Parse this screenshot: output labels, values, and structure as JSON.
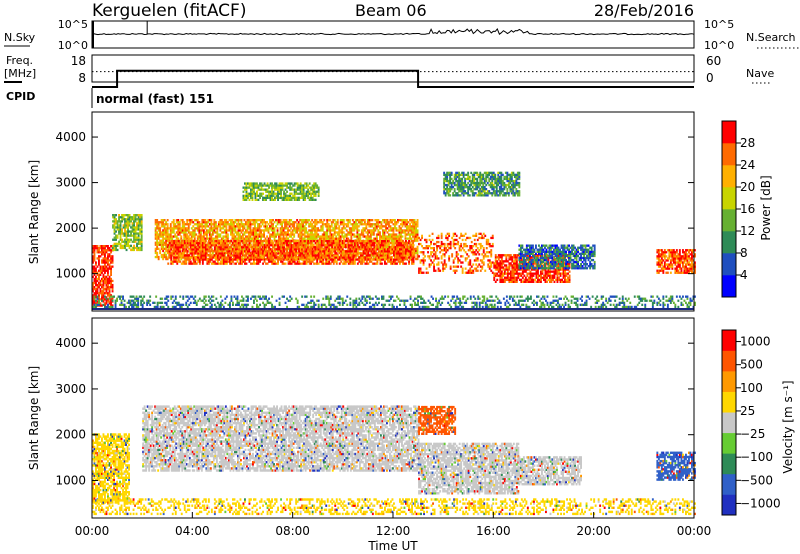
{
  "header": {
    "station": "Kerguelen (fitACF)",
    "beam": "Beam 06",
    "date": "28/Feb/2016"
  },
  "top_panels": {
    "nsky": {
      "left_label": "N.Sky",
      "right_label": "N.Search",
      "left_ticks": [
        "10^5",
        "10^0"
      ],
      "right_ticks": [
        "10^5",
        "10^0"
      ]
    },
    "freq": {
      "left_label_line1": "Freq.",
      "left_label_line2": "[MHz]",
      "left_ticks": [
        "18",
        "8"
      ],
      "right_label": "Nave",
      "right_ticks": [
        "60",
        "0"
      ],
      "freq_steps": [
        {
          "t": 0,
          "f": 8
        },
        {
          "t": 1.0,
          "f": 14
        },
        {
          "t": 13.0,
          "f": 8
        }
      ],
      "nave_level": 12
    },
    "cpid": {
      "label": "CPID",
      "mode": "normal (fast) 151"
    }
  },
  "chart_data": [
    {
      "type": "heatmap",
      "name": "power",
      "ylabel": "Slant Range [km]",
      "xlim": [
        0,
        24
      ],
      "ylim": [
        180,
        4550
      ],
      "yticks": [
        1000,
        2000,
        3000,
        4000
      ],
      "colorbar": {
        "label": "Power [dB]",
        "ticks": [
          "4",
          "8",
          "12",
          "16",
          "20",
          "24",
          "28"
        ],
        "colors": [
          "#0000ff",
          "#1f4fbf",
          "#2e8b57",
          "#66b032",
          "#c8d400",
          "#ffb000",
          "#ff6a00",
          "#ff0000"
        ]
      },
      "regions": [
        {
          "t0": 0.0,
          "t1": 0.8,
          "r0": 280,
          "r1": 1600,
          "level": 0.92
        },
        {
          "t0": 0.8,
          "t1": 2.0,
          "r0": 1500,
          "r1": 2300,
          "level": 0.5
        },
        {
          "t0": 2.5,
          "t1": 13.0,
          "r0": 1300,
          "r1": 2200,
          "level": 0.72
        },
        {
          "t0": 3.0,
          "t1": 12.8,
          "r0": 1200,
          "r1": 1700,
          "level": 0.85
        },
        {
          "t0": 13.0,
          "t1": 16.0,
          "r0": 1000,
          "r1": 1900,
          "level": 0.8
        },
        {
          "t0": 16.0,
          "t1": 19.0,
          "r0": 800,
          "r1": 1400,
          "level": 0.9
        },
        {
          "t0": 17.0,
          "t1": 20.0,
          "r0": 1100,
          "r1": 1600,
          "level": 0.25
        },
        {
          "t0": 22.5,
          "t1": 24.0,
          "r0": 1000,
          "r1": 1500,
          "level": 0.85
        },
        {
          "t0": 0.0,
          "t1": 24.0,
          "r0": 250,
          "r1": 500,
          "level": 0.3
        },
        {
          "t0": 6.0,
          "t1": 9.0,
          "r0": 2600,
          "r1": 3000,
          "level": 0.45
        },
        {
          "t0": 14.0,
          "t1": 17.0,
          "r0": 2700,
          "r1": 3200,
          "level": 0.35
        }
      ]
    },
    {
      "type": "heatmap",
      "name": "velocity",
      "ylabel": "Slant Range [km]",
      "xlabel": "Time UT",
      "xlim": [
        0,
        24
      ],
      "ylim": [
        180,
        4550
      ],
      "xticks": [
        "00:00",
        "04:00",
        "08:00",
        "12:00",
        "16:00",
        "20:00",
        "00:00"
      ],
      "yticks": [
        1000,
        2000,
        3000,
        4000
      ],
      "colorbar": {
        "label": "Velocity [m s⁻¹]",
        "ticks": [
          "1000",
          "500",
          "100",
          "25",
          "−25",
          "−100",
          "−500",
          "−1000"
        ],
        "colors": [
          "#2030c0",
          "#3060c8",
          "#2e8b57",
          "#66cc33",
          "#c8c8c8",
          "#ffd700",
          "#ff9900",
          "#ff5500",
          "#ff0000"
        ]
      },
      "regions": [
        {
          "t0": 2.0,
          "t1": 13.0,
          "r0": 1200,
          "r1": 2600,
          "level": 0.45
        },
        {
          "t0": 13.0,
          "t1": 17.0,
          "r0": 700,
          "r1": 1800,
          "level": 0.45
        },
        {
          "t0": 17.0,
          "t1": 19.5,
          "r0": 900,
          "r1": 1500,
          "level": 0.45
        },
        {
          "t0": 22.5,
          "t1": 24.0,
          "r0": 1000,
          "r1": 1600,
          "level": 0.15
        },
        {
          "t0": 0.0,
          "t1": 24.0,
          "r0": 250,
          "r1": 600,
          "level": 0.65
        },
        {
          "t0": 0.0,
          "t1": 1.5,
          "r0": 500,
          "r1": 2000,
          "level": 0.6
        },
        {
          "t0": 13.0,
          "t1": 14.5,
          "r0": 2000,
          "r1": 2600,
          "level": 0.8
        }
      ]
    }
  ]
}
